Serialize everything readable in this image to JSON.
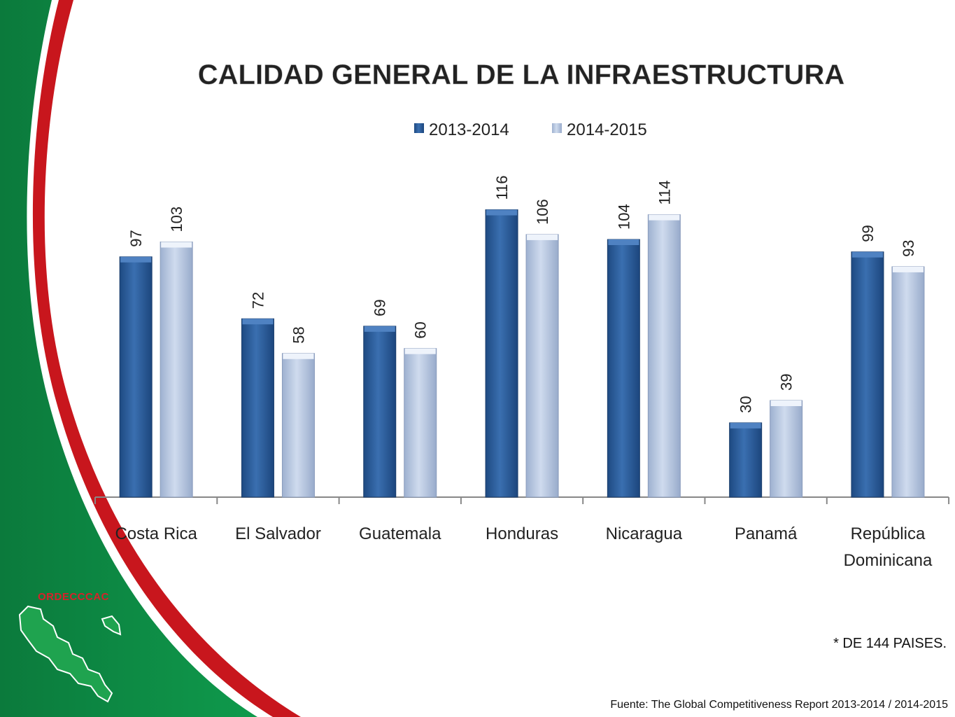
{
  "slide": {
    "brand": "ORDECCCAC",
    "footnote": "* DE 144 PAISES.",
    "source": "Fuente: The Global Competitiveness Report 2013-2014 / 2014-2015"
  },
  "colors": {
    "green": "#0a8a45",
    "red": "#c8161d",
    "series_2013": "#2d5f9e",
    "series_2014": "#b7c6e0"
  },
  "chart_data": {
    "type": "bar",
    "title": "CALIDAD GENERAL DE LA INFRAESTRUCTURA",
    "categories": [
      "Costa Rica",
      "El Salvador",
      "Guatemala",
      "Honduras",
      "Nicaragua",
      "Panamá",
      "República Dominicana"
    ],
    "series": [
      {
        "name": "2013-2014",
        "values": [
          97,
          72,
          69,
          116,
          104,
          30,
          99
        ]
      },
      {
        "name": "2014-2015",
        "values": [
          103,
          58,
          60,
          106,
          114,
          39,
          93
        ]
      }
    ],
    "ylim": [
      0,
      130
    ],
    "legend": "top-center",
    "grid": false,
    "data_labels": true
  }
}
